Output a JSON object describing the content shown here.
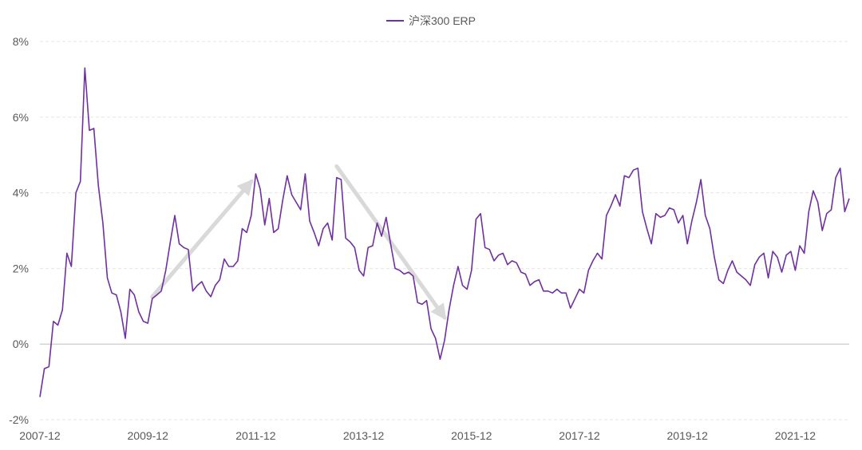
{
  "chart_data": {
    "type": "line",
    "legend": {
      "position": "top-center"
    },
    "colors": {
      "series": "#7030a0",
      "arrows": "#d9d9d9",
      "zero_line": "#bfbfbf",
      "grid": "#e6e6e6",
      "text": "#595959"
    },
    "y_axis": {
      "min": -2,
      "max": 8,
      "ticks": [
        -2,
        0,
        2,
        4,
        6,
        8
      ],
      "tick_labels": [
        "-2%",
        "0%",
        "2%",
        "4%",
        "6%",
        "8%"
      ],
      "grid": "dashed"
    },
    "x_axis": {
      "min": "2007-12",
      "max": "2022-12",
      "tick_labels": [
        "2007-12",
        "2009-12",
        "2011-12",
        "2013-12",
        "2015-12",
        "2017-12",
        "2019-12",
        "2021-12"
      ]
    },
    "series": [
      {
        "name": "沪深300 ERP",
        "data": [
          [
            "2007-12",
            -1.4
          ],
          [
            "2008-01",
            -0.65
          ],
          [
            "2008-02",
            -0.6
          ],
          [
            "2008-03",
            0.6
          ],
          [
            "2008-04",
            0.5
          ],
          [
            "2008-05",
            0.9
          ],
          [
            "2008-06",
            2.4
          ],
          [
            "2008-07",
            2.05
          ],
          [
            "2008-08",
            4.0
          ],
          [
            "2008-09",
            4.3
          ],
          [
            "2008-10",
            7.3
          ],
          [
            "2008-11",
            5.65
          ],
          [
            "2008-12",
            5.7
          ],
          [
            "2009-01",
            4.2
          ],
          [
            "2009-02",
            3.2
          ],
          [
            "2009-03",
            1.75
          ],
          [
            "2009-04",
            1.35
          ],
          [
            "2009-05",
            1.3
          ],
          [
            "2009-06",
            0.85
          ],
          [
            "2009-07",
            0.15
          ],
          [
            "2009-08",
            1.45
          ],
          [
            "2009-09",
            1.3
          ],
          [
            "2009-10",
            0.85
          ],
          [
            "2009-11",
            0.6
          ],
          [
            "2009-12",
            0.55
          ],
          [
            "2010-01",
            1.2
          ],
          [
            "2010-02",
            1.3
          ],
          [
            "2010-03",
            1.4
          ],
          [
            "2010-04",
            1.95
          ],
          [
            "2010-05",
            2.7
          ],
          [
            "2010-06",
            3.4
          ],
          [
            "2010-07",
            2.65
          ],
          [
            "2010-08",
            2.55
          ],
          [
            "2010-09",
            2.5
          ],
          [
            "2010-10",
            1.4
          ],
          [
            "2010-11",
            1.55
          ],
          [
            "2010-12",
            1.65
          ],
          [
            "2011-01",
            1.4
          ],
          [
            "2011-02",
            1.25
          ],
          [
            "2011-03",
            1.55
          ],
          [
            "2011-04",
            1.7
          ],
          [
            "2011-05",
            2.25
          ],
          [
            "2011-06",
            2.05
          ],
          [
            "2011-07",
            2.05
          ],
          [
            "2011-08",
            2.2
          ],
          [
            "2011-09",
            3.05
          ],
          [
            "2011-10",
            2.95
          ],
          [
            "2011-11",
            3.4
          ],
          [
            "2011-12",
            4.5
          ],
          [
            "2012-01",
            4.1
          ],
          [
            "2012-02",
            3.15
          ],
          [
            "2012-03",
            3.85
          ],
          [
            "2012-04",
            2.95
          ],
          [
            "2012-05",
            3.05
          ],
          [
            "2012-06",
            3.8
          ],
          [
            "2012-07",
            4.45
          ],
          [
            "2012-08",
            3.95
          ],
          [
            "2012-09",
            3.75
          ],
          [
            "2012-10",
            3.55
          ],
          [
            "2012-11",
            4.5
          ],
          [
            "2012-12",
            3.25
          ],
          [
            "2013-01",
            2.95
          ],
          [
            "2013-02",
            2.6
          ],
          [
            "2013-03",
            3.05
          ],
          [
            "2013-04",
            3.2
          ],
          [
            "2013-05",
            2.75
          ],
          [
            "2013-06",
            4.4
          ],
          [
            "2013-07",
            4.35
          ],
          [
            "2013-08",
            2.8
          ],
          [
            "2013-09",
            2.7
          ],
          [
            "2013-10",
            2.55
          ],
          [
            "2013-11",
            1.95
          ],
          [
            "2013-12",
            1.8
          ],
          [
            "2014-01",
            2.55
          ],
          [
            "2014-02",
            2.6
          ],
          [
            "2014-03",
            3.2
          ],
          [
            "2014-04",
            2.85
          ],
          [
            "2014-05",
            3.35
          ],
          [
            "2014-06",
            2.65
          ],
          [
            "2014-07",
            2.0
          ],
          [
            "2014-08",
            1.95
          ],
          [
            "2014-09",
            1.85
          ],
          [
            "2014-10",
            1.9
          ],
          [
            "2014-11",
            1.8
          ],
          [
            "2014-12",
            1.1
          ],
          [
            "2015-01",
            1.05
          ],
          [
            "2015-02",
            1.15
          ],
          [
            "2015-03",
            0.4
          ],
          [
            "2015-04",
            0.15
          ],
          [
            "2015-05",
            -0.4
          ],
          [
            "2015-06",
            0.1
          ],
          [
            "2015-07",
            0.9
          ],
          [
            "2015-08",
            1.55
          ],
          [
            "2015-09",
            2.05
          ],
          [
            "2015-10",
            1.55
          ],
          [
            "2015-11",
            1.45
          ],
          [
            "2015-12",
            1.95
          ],
          [
            "2016-01",
            3.3
          ],
          [
            "2016-02",
            3.45
          ],
          [
            "2016-03",
            2.55
          ],
          [
            "2016-04",
            2.5
          ],
          [
            "2016-05",
            2.2
          ],
          [
            "2016-06",
            2.35
          ],
          [
            "2016-07",
            2.4
          ],
          [
            "2016-08",
            2.1
          ],
          [
            "2016-09",
            2.2
          ],
          [
            "2016-10",
            2.15
          ],
          [
            "2016-11",
            1.9
          ],
          [
            "2016-12",
            1.85
          ],
          [
            "2017-01",
            1.55
          ],
          [
            "2017-02",
            1.65
          ],
          [
            "2017-03",
            1.7
          ],
          [
            "2017-04",
            1.4
          ],
          [
            "2017-05",
            1.4
          ],
          [
            "2017-06",
            1.35
          ],
          [
            "2017-07",
            1.45
          ],
          [
            "2017-08",
            1.35
          ],
          [
            "2017-09",
            1.35
          ],
          [
            "2017-10",
            0.95
          ],
          [
            "2017-11",
            1.2
          ],
          [
            "2017-12",
            1.45
          ],
          [
            "2018-01",
            1.35
          ],
          [
            "2018-02",
            1.95
          ],
          [
            "2018-03",
            2.2
          ],
          [
            "2018-04",
            2.4
          ],
          [
            "2018-05",
            2.25
          ],
          [
            "2018-06",
            3.4
          ],
          [
            "2018-07",
            3.65
          ],
          [
            "2018-08",
            3.95
          ],
          [
            "2018-09",
            3.65
          ],
          [
            "2018-10",
            4.45
          ],
          [
            "2018-11",
            4.4
          ],
          [
            "2018-12",
            4.6
          ],
          [
            "2019-01",
            4.65
          ],
          [
            "2019-02",
            3.5
          ],
          [
            "2019-03",
            3.05
          ],
          [
            "2019-04",
            2.65
          ],
          [
            "2019-05",
            3.45
          ],
          [
            "2019-06",
            3.35
          ],
          [
            "2019-07",
            3.4
          ],
          [
            "2019-08",
            3.6
          ],
          [
            "2019-09",
            3.55
          ],
          [
            "2019-10",
            3.2
          ],
          [
            "2019-11",
            3.4
          ],
          [
            "2019-12",
            2.65
          ],
          [
            "2020-01",
            3.25
          ],
          [
            "2020-02",
            3.75
          ],
          [
            "2020-03",
            4.35
          ],
          [
            "2020-04",
            3.4
          ],
          [
            "2020-05",
            3.05
          ],
          [
            "2020-06",
            2.3
          ],
          [
            "2020-07",
            1.7
          ],
          [
            "2020-08",
            1.6
          ],
          [
            "2020-09",
            1.95
          ],
          [
            "2020-10",
            2.2
          ],
          [
            "2020-11",
            1.9
          ],
          [
            "2020-12",
            1.8
          ],
          [
            "2021-01",
            1.7
          ],
          [
            "2021-02",
            1.55
          ],
          [
            "2021-03",
            2.1
          ],
          [
            "2021-04",
            2.3
          ],
          [
            "2021-05",
            2.4
          ],
          [
            "2021-06",
            1.75
          ],
          [
            "2021-07",
            2.45
          ],
          [
            "2021-08",
            2.3
          ],
          [
            "2021-09",
            1.9
          ],
          [
            "2021-10",
            2.35
          ],
          [
            "2021-11",
            2.45
          ],
          [
            "2021-12",
            1.95
          ],
          [
            "2022-01",
            2.6
          ],
          [
            "2022-02",
            2.4
          ],
          [
            "2022-03",
            3.5
          ],
          [
            "2022-04",
            4.05
          ],
          [
            "2022-05",
            3.75
          ],
          [
            "2022-06",
            3.0
          ],
          [
            "2022-07",
            3.45
          ],
          [
            "2022-08",
            3.55
          ],
          [
            "2022-09",
            4.4
          ],
          [
            "2022-10",
            4.65
          ],
          [
            "2022-11",
            3.5
          ],
          [
            "2022-12",
            3.85
          ]
        ]
      }
    ],
    "annotations": [
      {
        "type": "arrow",
        "from": [
          "2010-01",
          1.25
        ],
        "to": [
          "2011-11",
          4.3
        ]
      },
      {
        "type": "arrow",
        "from": [
          "2013-06",
          4.7
        ],
        "to": [
          "2015-06",
          0.7
        ]
      }
    ]
  }
}
